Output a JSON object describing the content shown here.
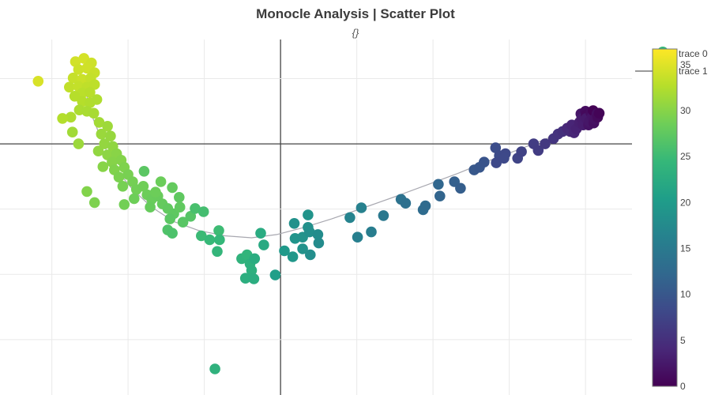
{
  "title": "Monocle Analysis | Scatter Plot",
  "subtitle": "{}",
  "legend": {
    "position": "top-right",
    "items": [
      {
        "label": "trace 0",
        "type": "markers",
        "marker_color": "#35b779"
      },
      {
        "label": "trace 1",
        "type": "line",
        "marker_color": "#9a9a9a"
      }
    ]
  },
  "colorbar": {
    "min": 0,
    "max": 36.7,
    "ticks": [
      0,
      5,
      10,
      15,
      20,
      25,
      30,
      35
    ]
  },
  "colors": {
    "viridis": [
      "#440154",
      "#482878",
      "#3e4989",
      "#31688e",
      "#26828e",
      "#1f9e89",
      "#35b779",
      "#6ece58",
      "#b5de2b",
      "#fde725"
    ],
    "gridline": "#e9e9e9",
    "zeroline": "#444444",
    "trajectory_line": "#a8a8b0",
    "title": "#3b3b3b",
    "tick_label": "#444444",
    "background": "#ffffff"
  },
  "chart_data": {
    "type": "scatter",
    "title": "Monocle Analysis | Scatter Plot",
    "subtitle": "{}",
    "xlabel": "",
    "ylabel": "",
    "xlim": [
      -3.68,
      4.61
    ],
    "ylim": [
      -3.85,
      1.6
    ],
    "xticks": [
      -3,
      -2,
      -1,
      0,
      1,
      2,
      3,
      4
    ],
    "yticks": [
      -3,
      -2,
      -1,
      0,
      1
    ],
    "grid": true,
    "legend_position": "top-right",
    "color_range": [
      0,
      36.7
    ],
    "marker_radius": 6.8,
    "series": [
      {
        "name": "trace 0",
        "mode": "markers",
        "points": [
          [
            -3.18,
            0.96,
            34.6
          ],
          [
            -2.69,
            1.26,
            34.2
          ],
          [
            -2.58,
            1.31,
            34.4
          ],
          [
            -2.48,
            1.24,
            34.0
          ],
          [
            -2.65,
            1.14,
            33.9
          ],
          [
            -2.54,
            1.16,
            34.1
          ],
          [
            -2.44,
            1.09,
            33.7
          ],
          [
            -2.72,
            1.01,
            33.6
          ],
          [
            -2.6,
            0.99,
            33.8
          ],
          [
            -2.49,
            1.01,
            33.5
          ],
          [
            -2.77,
            0.87,
            33.3
          ],
          [
            -2.65,
            0.88,
            33.4
          ],
          [
            -2.54,
            0.87,
            33.2
          ],
          [
            -2.44,
            0.91,
            33.1
          ],
          [
            -2.6,
            0.78,
            32.9
          ],
          [
            -2.5,
            0.79,
            32.8
          ],
          [
            -2.7,
            0.73,
            32.7
          ],
          [
            -2.6,
            0.65,
            32.6
          ],
          [
            -2.5,
            0.63,
            32.4
          ],
          [
            -2.41,
            0.68,
            32.3
          ],
          [
            -2.64,
            0.52,
            32.1
          ],
          [
            -2.54,
            0.5,
            32.0
          ],
          [
            -2.45,
            0.47,
            31.9
          ],
          [
            -2.75,
            0.41,
            32.2
          ],
          [
            -2.86,
            0.39,
            32.5
          ],
          [
            -2.73,
            0.18,
            31.5
          ],
          [
            -2.65,
            0.0,
            31.2
          ],
          [
            -2.38,
            0.33,
            31.6
          ],
          [
            -2.27,
            0.27,
            31.3
          ],
          [
            -2.35,
            0.15,
            31.1
          ],
          [
            -2.23,
            0.12,
            30.9
          ],
          [
            -2.31,
            0.0,
            30.7
          ],
          [
            -2.2,
            -0.04,
            30.5
          ],
          [
            -2.39,
            -0.11,
            30.6
          ],
          [
            -2.27,
            -0.17,
            30.3
          ],
          [
            -2.15,
            -0.15,
            30.1
          ],
          [
            -2.21,
            -0.28,
            29.9
          ],
          [
            -2.09,
            -0.25,
            29.8
          ],
          [
            -2.33,
            -0.35,
            30.0
          ],
          [
            -2.18,
            -0.4,
            29.6
          ],
          [
            -2.05,
            -0.36,
            29.5
          ],
          [
            -2.12,
            -0.51,
            29.3
          ],
          [
            -2.0,
            -0.47,
            29.1
          ],
          [
            -1.94,
            -0.58,
            28.9
          ],
          [
            -2.07,
            -0.65,
            29.0
          ],
          [
            -2.54,
            -0.73,
            29.7
          ],
          [
            -2.44,
            -0.9,
            29.4
          ],
          [
            -1.89,
            -0.7,
            28.7
          ],
          [
            -1.8,
            -0.65,
            28.6
          ],
          [
            -1.79,
            -0.42,
            27.2
          ],
          [
            -1.75,
            -0.78,
            28.4
          ],
          [
            -1.92,
            -0.84,
            28.5
          ],
          [
            -2.05,
            -0.93,
            28.8
          ],
          [
            -1.69,
            -0.85,
            28.2
          ],
          [
            -1.61,
            -0.8,
            28.1
          ],
          [
            -1.57,
            -0.58,
            28.3
          ],
          [
            -1.64,
            -0.74,
            28.4
          ],
          [
            -1.42,
            -0.67,
            27.8
          ],
          [
            -1.33,
            -0.82,
            27.5
          ],
          [
            -1.55,
            -0.92,
            27.9
          ],
          [
            -1.71,
            -0.97,
            28.0
          ],
          [
            -1.48,
            -0.99,
            27.7
          ],
          [
            -1.4,
            -1.07,
            27.4
          ],
          [
            -1.32,
            -0.97,
            27.6
          ],
          [
            -1.45,
            -1.15,
            27.2
          ],
          [
            -1.28,
            -1.2,
            27.0
          ],
          [
            -1.18,
            -1.11,
            26.8
          ],
          [
            -1.12,
            -0.99,
            25.9
          ],
          [
            -1.01,
            -1.04,
            25.6
          ],
          [
            -1.48,
            -1.32,
            26.4
          ],
          [
            -1.42,
            -1.37,
            26.2
          ],
          [
            -1.04,
            -1.41,
            24.9
          ],
          [
            -0.93,
            -1.47,
            24.6
          ],
          [
            -0.81,
            -1.33,
            25.1
          ],
          [
            -0.8,
            -1.47,
            24.4
          ],
          [
            -0.83,
            -1.65,
            24.2
          ],
          [
            -0.51,
            -1.76,
            23.7
          ],
          [
            -0.44,
            -1.7,
            23.9
          ],
          [
            -0.4,
            -1.84,
            23.4
          ],
          [
            -0.38,
            -1.94,
            23.2
          ],
          [
            -0.46,
            -2.06,
            23.0
          ],
          [
            -0.35,
            -2.07,
            22.8
          ],
          [
            -0.86,
            -3.45,
            23.5
          ],
          [
            -0.26,
            -1.37,
            22.5
          ],
          [
            -0.22,
            -1.55,
            22.2
          ],
          [
            -0.34,
            -1.76,
            22.7
          ],
          [
            -0.07,
            -2.01,
            20.5
          ],
          [
            0.05,
            -1.64,
            19.6
          ],
          [
            0.16,
            -1.73,
            19.3
          ],
          [
            0.19,
            -1.45,
            19.0
          ],
          [
            0.29,
            -1.43,
            18.8
          ],
          [
            0.29,
            -1.61,
            18.6
          ],
          [
            0.36,
            -1.09,
            18.9
          ],
          [
            0.36,
            -1.28,
            18.4
          ],
          [
            0.38,
            -1.35,
            18.2
          ],
          [
            0.39,
            -1.7,
            18.0
          ],
          [
            0.49,
            -1.39,
            17.8
          ],
          [
            0.5,
            -1.52,
            17.6
          ],
          [
            0.18,
            -1.22,
            18.5
          ],
          [
            0.91,
            -1.13,
            16.4
          ],
          [
            1.01,
            -1.43,
            15.8
          ],
          [
            1.06,
            -0.98,
            16.1
          ],
          [
            1.19,
            -1.35,
            15.5
          ],
          [
            1.35,
            -1.1,
            14.7
          ],
          [
            1.58,
            -0.85,
            13.8
          ],
          [
            1.64,
            -0.91,
            13.5
          ],
          [
            1.87,
            -1.01,
            12.9
          ],
          [
            1.9,
            -0.95,
            12.7
          ],
          [
            2.07,
            -0.62,
            12.1
          ],
          [
            2.09,
            -0.8,
            11.8
          ],
          [
            2.28,
            -0.58,
            11.2
          ],
          [
            2.36,
            -0.68,
            10.9
          ],
          [
            2.54,
            -0.4,
            10.1
          ],
          [
            2.61,
            -0.36,
            9.9
          ],
          [
            2.67,
            -0.28,
            9.6
          ],
          [
            2.82,
            -0.06,
            8.7
          ],
          [
            2.87,
            -0.18,
            8.4
          ],
          [
            2.83,
            -0.29,
            8.2
          ],
          [
            2.95,
            -0.15,
            8.0
          ],
          [
            2.93,
            -0.22,
            8.1
          ],
          [
            3.11,
            -0.22,
            7.5
          ],
          [
            3.16,
            -0.12,
            7.3
          ],
          [
            3.32,
            0.0,
            6.7
          ],
          [
            3.38,
            -0.1,
            6.5
          ],
          [
            3.47,
            0.0,
            6.1
          ],
          [
            3.58,
            0.08,
            5.7
          ],
          [
            3.64,
            0.15,
            5.4
          ],
          [
            3.7,
            0.19,
            5.1
          ],
          [
            3.76,
            0.24,
            4.2
          ],
          [
            3.8,
            0.19,
            4.4
          ],
          [
            3.82,
            0.29,
            3.8
          ],
          [
            3.85,
            0.17,
            3.9
          ],
          [
            3.88,
            0.23,
            3.5
          ],
          [
            3.92,
            0.33,
            3.2
          ],
          [
            3.94,
            0.46,
            2.1
          ],
          [
            3.95,
            0.39,
            2.8
          ],
          [
            3.97,
            0.29,
            2.9
          ],
          [
            4.0,
            0.5,
            1.2
          ],
          [
            4.01,
            0.44,
            0.8
          ],
          [
            4.01,
            0.39,
            2.6
          ],
          [
            4.04,
            0.29,
            1.9
          ],
          [
            4.05,
            0.34,
            2.3
          ],
          [
            4.07,
            0.48,
            1.1
          ],
          [
            4.09,
            0.42,
            2.0
          ],
          [
            4.1,
            0.51,
            0.1
          ],
          [
            4.11,
            0.32,
            1.5
          ],
          [
            4.12,
            0.38,
            1.7
          ],
          [
            4.15,
            0.46,
            1.4
          ],
          [
            4.16,
            0.41,
            0.9
          ],
          [
            4.18,
            0.47,
            0.3
          ]
        ]
      },
      {
        "name": "trace 1",
        "mode": "line",
        "points": [
          [
            -2.57,
            0.85
          ],
          [
            -2.46,
            0.39
          ],
          [
            -2.31,
            -0.04
          ],
          [
            -2.15,
            -0.4
          ],
          [
            -1.94,
            -0.7
          ],
          [
            -1.69,
            -0.97
          ],
          [
            -1.4,
            -1.19
          ],
          [
            -1.07,
            -1.33
          ],
          [
            -0.73,
            -1.41
          ],
          [
            -0.38,
            -1.44
          ],
          [
            -0.05,
            -1.39
          ],
          [
            0.31,
            -1.28
          ],
          [
            0.67,
            -1.15
          ],
          [
            1.09,
            -0.98
          ],
          [
            1.5,
            -0.81
          ],
          [
            1.92,
            -0.63
          ],
          [
            2.33,
            -0.45
          ],
          [
            2.75,
            -0.25
          ],
          [
            3.16,
            -0.07
          ],
          [
            3.58,
            0.12
          ],
          [
            3.94,
            0.29
          ]
        ]
      }
    ]
  }
}
